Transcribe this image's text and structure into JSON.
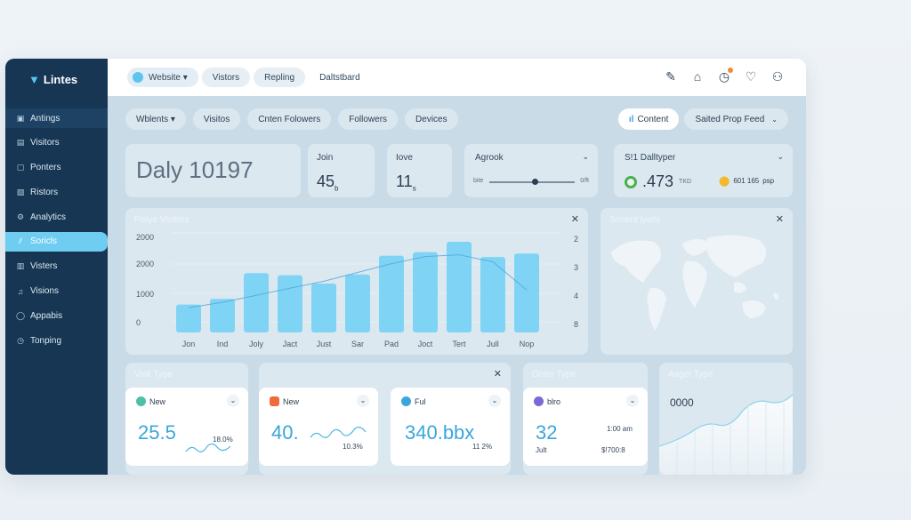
{
  "brand": {
    "name": "Lintes"
  },
  "sidebar": {
    "items": [
      {
        "label": "Antings",
        "icon": "grid-icon"
      },
      {
        "label": "Visitors",
        "icon": "list-icon"
      },
      {
        "label": "Ponters",
        "icon": "page-icon"
      },
      {
        "label": "Ristors",
        "icon": "users-icon"
      },
      {
        "label": "Analytics",
        "icon": "gear-icon"
      },
      {
        "label": "Soricls",
        "icon": "chart-icon"
      },
      {
        "label": "Visters",
        "icon": "monitor-icon"
      },
      {
        "label": "Visions",
        "icon": "music-icon"
      },
      {
        "label": "Appabis",
        "icon": "circle-icon"
      },
      {
        "label": "Tonping",
        "icon": "clock-icon"
      }
    ],
    "active_index": 5
  },
  "topbar": {
    "crumbs": [
      "Website ▾",
      "Vistors",
      "Repling",
      "Daltstbard"
    ]
  },
  "filters": {
    "left": [
      "Wblents ▾",
      "Visitos",
      "Cnten Folowers",
      "Followers",
      "Devices"
    ],
    "content": "Content",
    "feed": "Saited Prop Feed"
  },
  "stats": {
    "daily": "Daly 10197",
    "join": {
      "label": "Join",
      "value": "45",
      "unit": "b"
    },
    "love": {
      "label": "Iove",
      "value": "11",
      "unit": "s"
    },
    "agrook": {
      "label": "Agrook",
      "min": "bite",
      "max": "0/ft"
    },
    "daily_type": {
      "label": "S!1 Dalltyper",
      "value": ".473",
      "unit": "TKD",
      "pin_text": "601 165",
      "pin_unit": "psp"
    }
  },
  "visitors_card": {
    "title": "Fisiye Visitors"
  },
  "map_card": {
    "title": "Sonent lysits"
  },
  "chart_data": {
    "type": "bar",
    "categories": [
      "Jon",
      "Ind",
      "Joly",
      "Jact",
      "Just",
      "Sar",
      "Pad",
      "Joct",
      "Tert",
      "Jull",
      "Nop"
    ],
    "values": [
      40,
      48,
      85,
      82,
      70,
      83,
      110,
      115,
      130,
      108,
      113
    ],
    "left_ticks": [
      "2000",
      "2000",
      "1000",
      "0"
    ],
    "right_ticks": [
      "2",
      "3",
      "4",
      "8"
    ],
    "trend": [
      8,
      14,
      22,
      30,
      38,
      48,
      58,
      66,
      68,
      60,
      28
    ]
  },
  "bottom": {
    "visit_type_title": "Visit Type",
    "order_type_title": "Onter Type",
    "aget_type_title": "Aaget Type",
    "new1": {
      "label": "New",
      "value": "25.5",
      "pct": "18.0%"
    },
    "new2": {
      "label": "New",
      "value": "40.",
      "pct": "10.3%"
    },
    "ful": {
      "label": "Ful",
      "value": "340.bbx",
      "pct": "11 2%"
    },
    "blro": {
      "label": "blro",
      "value": "32",
      "time": "1:00 am",
      "month": "Jult",
      "amount": "$!700:8"
    },
    "aget": {
      "value": "0000"
    }
  },
  "colors": {
    "accent": "#6fcdf1",
    "sidebar": "#173653",
    "bar": "#7fd4f5"
  }
}
